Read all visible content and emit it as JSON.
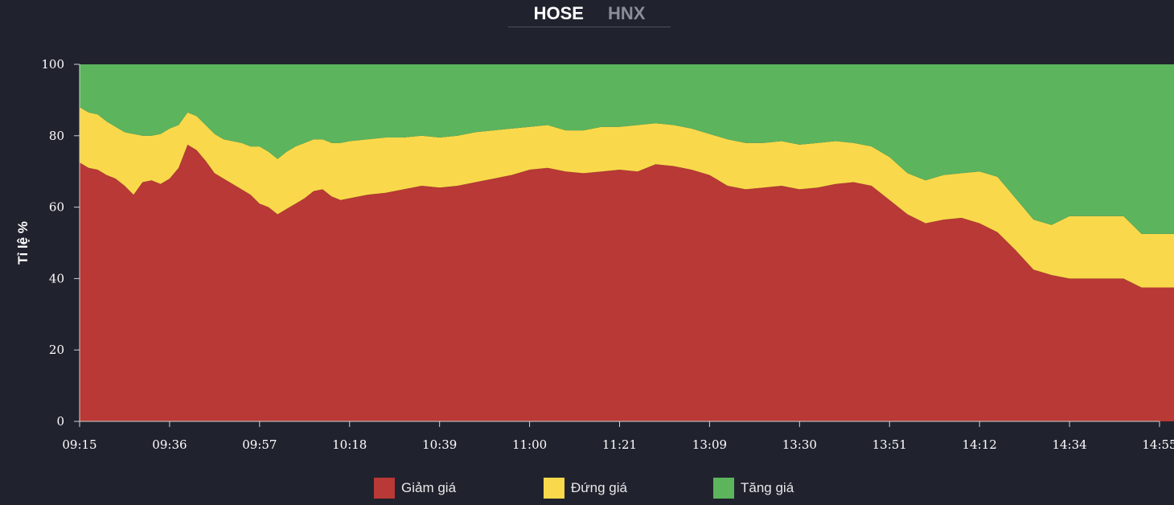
{
  "tabs": [
    {
      "label": "HOSE",
      "active": true
    },
    {
      "label": "HNX",
      "active": false
    }
  ],
  "chart_data": {
    "type": "area",
    "stacked": true,
    "ylabel": "Tỉ lệ %",
    "ylim": [
      0,
      100
    ],
    "yticks": [
      0,
      20,
      40,
      60,
      80,
      100
    ],
    "xticks": [
      "09:15",
      "09:36",
      "09:57",
      "10:18",
      "10:39",
      "11:00",
      "11:21",
      "13:09",
      "13:30",
      "13:51",
      "14:12",
      "14:34",
      "14:55"
    ],
    "x": [
      0,
      0.1,
      0.2,
      0.3,
      0.4,
      0.5,
      0.6,
      0.7,
      0.8,
      0.9,
      1.0,
      1.1,
      1.2,
      1.3,
      1.4,
      1.5,
      1.6,
      1.7,
      1.8,
      1.9,
      2.0,
      2.1,
      2.2,
      2.3,
      2.4,
      2.5,
      2.6,
      2.7,
      2.8,
      2.9,
      3.0,
      3.2,
      3.4,
      3.6,
      3.8,
      4.0,
      4.2,
      4.4,
      4.6,
      4.8,
      5.0,
      5.2,
      5.4,
      5.6,
      5.8,
      6.0,
      6.2,
      6.4,
      6.6,
      6.8,
      7.0,
      7.2,
      7.4,
      7.6,
      7.8,
      8.0,
      8.2,
      8.4,
      8.6,
      8.8,
      9.0,
      9.2,
      9.4,
      9.6,
      9.8,
      10.0,
      10.2,
      10.4,
      10.6,
      10.8,
      11.0,
      11.2,
      11.4,
      11.6,
      11.8,
      12.0,
      12.2
    ],
    "series": [
      {
        "name": "Giảm giá",
        "color": "#b83935",
        "values": [
          72.5,
          71.0,
          70.5,
          69.0,
          68.0,
          66.0,
          63.5,
          67.0,
          67.5,
          66.5,
          68.0,
          71.0,
          77.5,
          76.0,
          73.0,
          69.5,
          68.0,
          66.5,
          65.0,
          63.5,
          61.0,
          60.0,
          58.0,
          59.5,
          61.0,
          62.5,
          64.5,
          65.0,
          63.0,
          62.0,
          62.5,
          63.5,
          64.0,
          65.0,
          66.0,
          65.5,
          66.0,
          67.0,
          68.0,
          69.0,
          70.5,
          71.0,
          70.0,
          69.5,
          70.0,
          70.5,
          70.0,
          72.0,
          71.5,
          70.5,
          69.0,
          66.0,
          65.0,
          65.5,
          66.0,
          65.0,
          65.5,
          66.5,
          67.0,
          66.0,
          62.0,
          58.0,
          55.5,
          56.5,
          57.0,
          55.5,
          53.0,
          48.0,
          42.5,
          41.0,
          40.0,
          40.0,
          40.0,
          40.0,
          37.5,
          37.5,
          37.5
        ]
      },
      {
        "name": "Đứng giá",
        "color": "#f9d94b",
        "values": [
          15.5,
          15.5,
          15.5,
          15.0,
          14.5,
          15.0,
          17.0,
          13.0,
          12.5,
          14.0,
          14.0,
          12.0,
          9.0,
          9.5,
          10.0,
          11.0,
          11.0,
          12.0,
          13.0,
          13.5,
          16.0,
          15.5,
          15.5,
          16.0,
          16.0,
          15.5,
          14.5,
          14.0,
          15.0,
          16.0,
          16.0,
          15.5,
          15.5,
          14.5,
          14.0,
          14.0,
          14.0,
          14.0,
          13.5,
          13.0,
          12.0,
          12.0,
          11.5,
          12.0,
          12.5,
          12.0,
          13.0,
          11.5,
          11.5,
          11.5,
          11.5,
          13.0,
          13.0,
          12.5,
          12.5,
          12.5,
          12.5,
          12.0,
          11.0,
          11.0,
          12.0,
          11.5,
          12.0,
          12.5,
          12.5,
          14.5,
          15.5,
          14.5,
          14.0,
          14.0,
          17.5,
          17.5,
          17.5,
          17.5,
          15.0,
          15.0,
          15.0
        ]
      },
      {
        "name": "Tăng giá",
        "color": "#5cb45d",
        "values": [
          12.0,
          13.5,
          14.0,
          16.0,
          17.5,
          19.0,
          19.5,
          20.0,
          20.0,
          19.5,
          18.0,
          17.0,
          13.5,
          14.5,
          17.0,
          19.5,
          21.0,
          21.5,
          22.0,
          23.0,
          23.0,
          24.5,
          26.5,
          24.5,
          23.0,
          22.0,
          21.0,
          21.0,
          22.0,
          22.0,
          21.5,
          21.0,
          20.5,
          20.5,
          20.0,
          20.5,
          20.0,
          19.0,
          18.5,
          18.0,
          17.5,
          17.0,
          18.5,
          18.5,
          17.5,
          17.5,
          17.0,
          16.5,
          17.0,
          18.0,
          19.5,
          21.0,
          22.0,
          22.0,
          21.5,
          22.5,
          22.0,
          21.5,
          22.0,
          23.0,
          26.0,
          30.5,
          32.5,
          31.0,
          30.5,
          30.0,
          31.5,
          37.5,
          43.5,
          45.0,
          42.5,
          42.5,
          42.5,
          42.5,
          47.5,
          47.5,
          47.5
        ]
      }
    ],
    "grid": false,
    "legend_position": "bottom"
  }
}
